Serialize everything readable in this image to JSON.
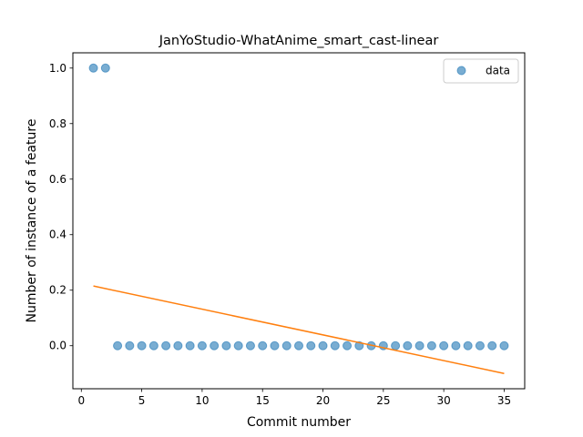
{
  "chart_data": {
    "type": "scatter",
    "title": "JanYoStudio-WhatAnime_smart_cast-linear",
    "xlabel": "Commit number",
    "ylabel": "Number of instance of a feature",
    "xlim": [
      -0.7,
      36.7
    ],
    "ylim": [
      -0.155,
      1.055
    ],
    "xticks": [
      0,
      5,
      10,
      15,
      20,
      25,
      30,
      35
    ],
    "yticks": [
      0.0,
      0.2,
      0.4,
      0.6,
      0.8,
      1.0
    ],
    "xtick_labels": [
      "0",
      "5",
      "10",
      "15",
      "20",
      "25",
      "30",
      "35"
    ],
    "ytick_labels": [
      "0.0",
      "0.2",
      "0.4",
      "0.6",
      "0.8",
      "1.0"
    ],
    "grid": false,
    "legend": {
      "position": "top-right",
      "entries": [
        "data"
      ]
    },
    "series": [
      {
        "name": "data",
        "kind": "scatter",
        "color": "#1f77b4",
        "x": [
          1,
          2,
          3,
          4,
          5,
          6,
          7,
          8,
          9,
          10,
          11,
          12,
          13,
          14,
          15,
          16,
          17,
          18,
          19,
          20,
          21,
          22,
          23,
          24,
          25,
          26,
          27,
          28,
          29,
          30,
          31,
          32,
          33,
          34,
          35
        ],
        "y": [
          1,
          1,
          0,
          0,
          0,
          0,
          0,
          0,
          0,
          0,
          0,
          0,
          0,
          0,
          0,
          0,
          0,
          0,
          0,
          0,
          0,
          0,
          0,
          0,
          0,
          0,
          0,
          0,
          0,
          0,
          0,
          0,
          0,
          0,
          0
        ]
      },
      {
        "kind": "line",
        "color": "#ff7f0e",
        "x": [
          1,
          35
        ],
        "y": [
          0.215,
          -0.1
        ]
      }
    ]
  }
}
